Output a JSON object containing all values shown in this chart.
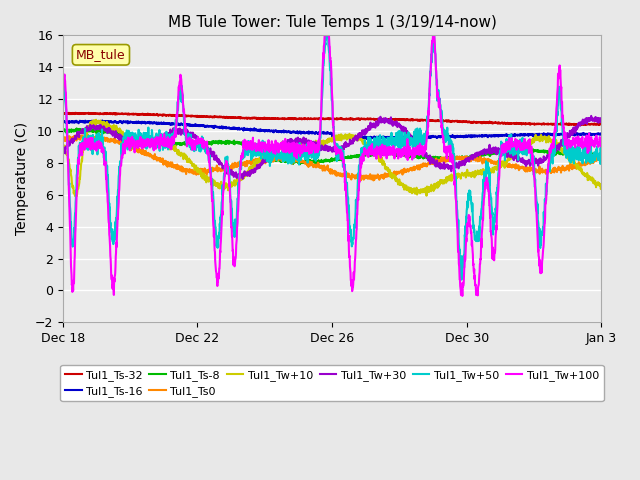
{
  "title": "MB Tule Tower: Tule Temps 1 (3/19/14-now)",
  "ylabel": "Temperature (C)",
  "ylim": [
    -2,
    16
  ],
  "yticks": [
    -2,
    0,
    2,
    4,
    6,
    8,
    10,
    12,
    14,
    16
  ],
  "bg_color": "#e8e8e8",
  "plot_bg_color": "#ebebeb",
  "legend_label": "MB_tule",
  "series": [
    {
      "label": "Tul1_Ts-32",
      "color": "#cc0000",
      "lw": 1.5
    },
    {
      "label": "Tul1_Ts-16",
      "color": "#0000cc",
      "lw": 1.5
    },
    {
      "label": "Tul1_Ts-8",
      "color": "#00bb00",
      "lw": 1.5
    },
    {
      "label": "Tul1_Ts0",
      "color": "#ff8800",
      "lw": 1.5
    },
    {
      "label": "Tul1_Tw+10",
      "color": "#cccc00",
      "lw": 1.5
    },
    {
      "label": "Tul1_Tw+30",
      "color": "#9900cc",
      "lw": 1.5
    },
    {
      "label": "Tul1_Tw+50",
      "color": "#00cccc",
      "lw": 1.5
    },
    {
      "label": "Tul1_Tw+100",
      "color": "#ff00ff",
      "lw": 1.5
    }
  ],
  "xtick_labels": [
    "Dec 18",
    "Dec 22",
    "Dec 26",
    "Dec 30",
    "Jan 3"
  ],
  "xtick_positions": [
    0,
    4,
    8,
    12,
    16
  ]
}
